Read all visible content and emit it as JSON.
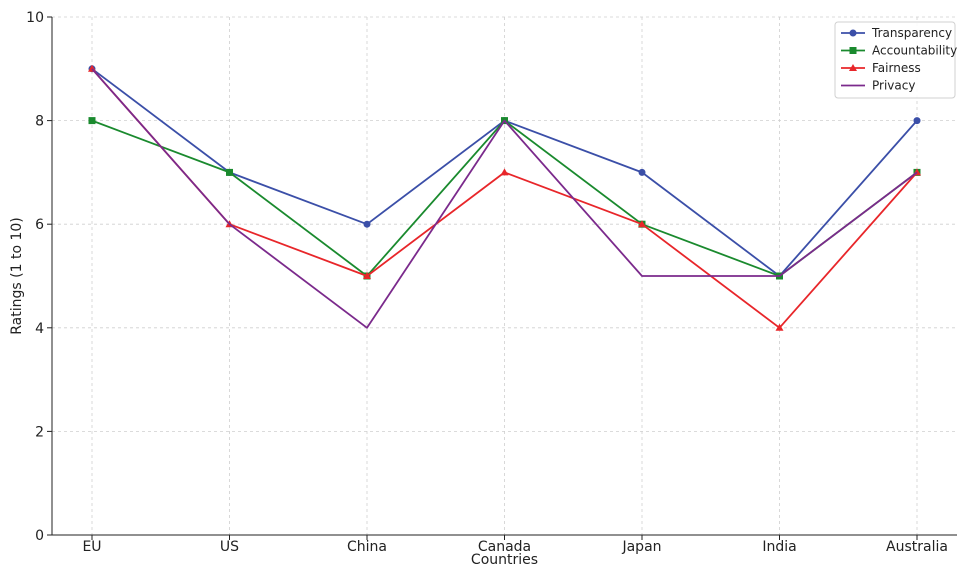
{
  "chart_data": {
    "type": "line",
    "title": "",
    "xlabel": "Countries",
    "ylabel": "Ratings (1 to 10)",
    "categories": [
      "EU",
      "US",
      "China",
      "Canada",
      "Japan",
      "India",
      "Australia"
    ],
    "ylim": [
      0,
      10
    ],
    "yticks": [
      0,
      2,
      4,
      6,
      8,
      10
    ],
    "grid": true,
    "legend_position": "top-right",
    "series": [
      {
        "name": "Transparency",
        "color": "#3b4fa8",
        "marker": "circle",
        "values": [
          9,
          7,
          6,
          8,
          7,
          5,
          8
        ]
      },
      {
        "name": "Accountability",
        "color": "#1a8a2e",
        "marker": "square",
        "values": [
          8,
          7,
          5,
          8,
          6,
          5,
          7
        ]
      },
      {
        "name": "Fairness",
        "color": "#e8262a",
        "marker": "triangle",
        "values": [
          9,
          6,
          5,
          7,
          6,
          4,
          7
        ]
      },
      {
        "name": "Privacy",
        "color": "#7b2a8c",
        "marker": "none",
        "values": [
          9,
          6,
          4,
          8,
          5,
          5,
          7
        ]
      }
    ]
  }
}
